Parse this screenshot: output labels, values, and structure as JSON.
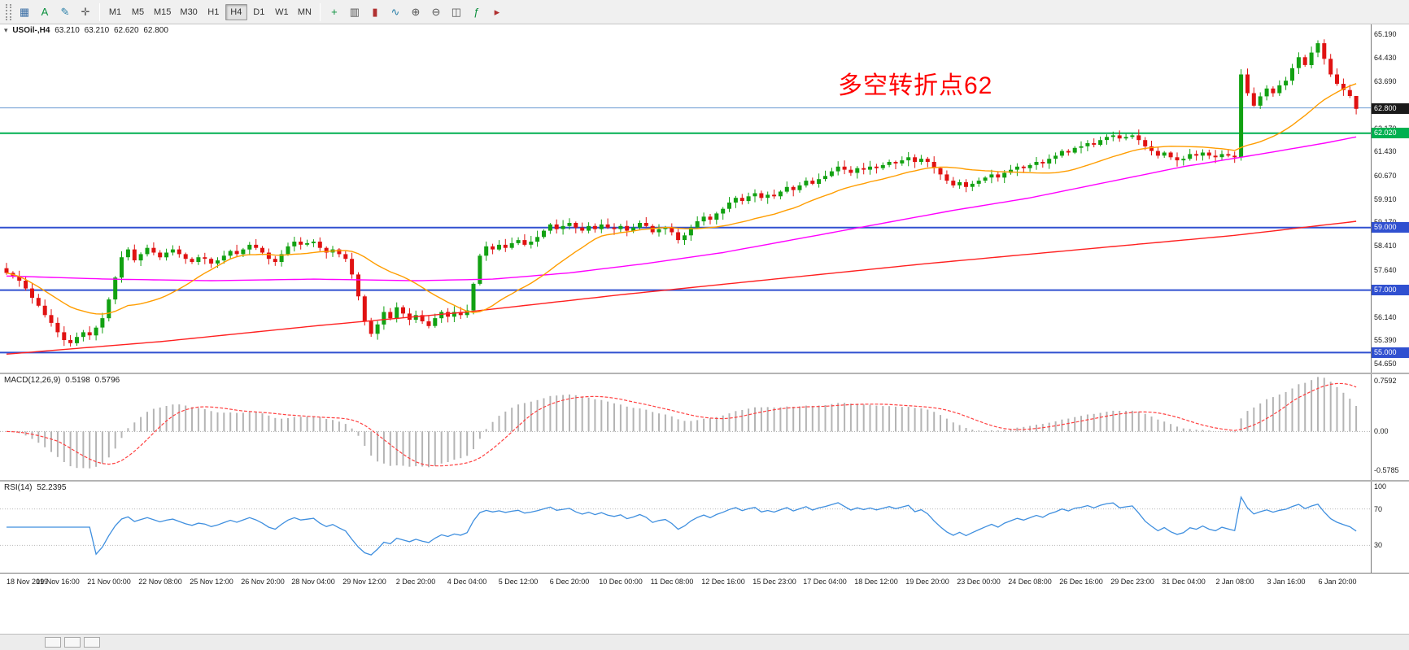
{
  "toolbar": {
    "left_icons": [
      {
        "name": "chart-window-icon",
        "glyph": "▦",
        "color": "#3a6ea5"
      },
      {
        "name": "text-annotation-icon",
        "glyph": "A",
        "color": "#0a8f3c"
      },
      {
        "name": "draw-pen-icon",
        "glyph": "✎",
        "color": "#2a7fa8"
      },
      {
        "name": "crosshair-icon",
        "glyph": "✛",
        "color": "#555555"
      }
    ],
    "timeframes": {
      "items": [
        "M1",
        "M5",
        "M15",
        "M30",
        "H1",
        "H4",
        "D1",
        "W1",
        "MN"
      ],
      "active": "H4"
    },
    "right_icons": [
      {
        "name": "new-order-icon",
        "glyph": "+",
        "color": "#0a8f3c"
      },
      {
        "name": "bar-chart-icon",
        "glyph": "▥",
        "color": "#555555"
      },
      {
        "name": "candlestick-chart-icon",
        "glyph": "▮",
        "color": "#b03030"
      },
      {
        "name": "line-chart-icon",
        "glyph": "∿",
        "color": "#2a7fa8"
      },
      {
        "name": "zoom-in-icon",
        "glyph": "⊕",
        "color": "#555555"
      },
      {
        "name": "zoom-out-icon",
        "glyph": "⊖",
        "color": "#555555"
      },
      {
        "name": "tile-windows-icon",
        "glyph": "◫",
        "color": "#555555"
      },
      {
        "name": "indicators-icon",
        "glyph": "ƒ",
        "color": "#0a8f3c"
      },
      {
        "name": "auto-scroll-icon",
        "glyph": "▸",
        "color": "#b03030"
      }
    ]
  },
  "chart": {
    "symbol_label": "USOil-,H4",
    "ohlc": {
      "open": "63.210",
      "high": "63.210",
      "low": "62.620",
      "close": "62.800"
    },
    "annotation": {
      "text": "多空转折点62",
      "color": "#ff0000"
    },
    "price_axis": {
      "labels": [
        "65.190",
        "64.430",
        "63.690",
        "62.170",
        "61.430",
        "60.670",
        "59.910",
        "59.170",
        "58.410",
        "57.640",
        "56.140",
        "55.390",
        "54.650"
      ],
      "label_values": [
        65.19,
        64.43,
        63.69,
        62.17,
        61.43,
        60.67,
        59.91,
        59.17,
        58.41,
        57.64,
        56.14,
        55.39,
        54.65
      ]
    },
    "current_price_tag": {
      "text": "62.800",
      "value": 62.8,
      "bg": "#1a1a1a"
    }
  },
  "chart_data": {
    "type": "candlestick",
    "symbol": "USOil",
    "timeframe": "H4",
    "colors": {
      "up": "#12a112",
      "down": "#e01212",
      "ma_fast": "#ff9d00",
      "ma_mid": "#ff00ff",
      "ma_slow": "#ff2020",
      "macd_hist": "#b4b4b4",
      "macd_signal": "#ff4040",
      "rsi_line": "#3f8fdf"
    },
    "y_range": {
      "min": 54.36,
      "max": 65.5
    },
    "bars_per_label": 8,
    "x_labels": [
      "18 Nov 2019",
      "19 Nov 16:00",
      "21 Nov 00:00",
      "22 Nov 08:00",
      "25 Nov 12:00",
      "26 Nov 20:00",
      "28 Nov 04:00",
      "29 Nov 12:00",
      "2 Dec 20:00",
      "4 Dec 04:00",
      "5 Dec 12:00",
      "6 Dec 20:00",
      "10 Dec 00:00",
      "11 Dec 08:00",
      "12 Dec 16:00",
      "15 Dec 23:00",
      "17 Dec 04:00",
      "18 Dec 12:00",
      "19 Dec 20:00",
      "23 Dec 00:00",
      "24 Dec 08:00",
      "26 Dec 16:00",
      "29 Dec 23:00",
      "31 Dec 04:00",
      "2 Jan 08:00",
      "3 Jan 16:00",
      "6 Jan 20:00"
    ],
    "closes": [
      57.55,
      57.45,
      57.3,
      57.05,
      56.75,
      56.5,
      56.2,
      55.95,
      55.65,
      55.4,
      55.3,
      55.5,
      55.65,
      55.55,
      55.8,
      56.1,
      56.7,
      57.4,
      58.05,
      58.3,
      57.95,
      58.15,
      58.35,
      58.2,
      58.05,
      58.2,
      58.3,
      58.15,
      58.0,
      57.9,
      58.05,
      58.0,
      57.85,
      57.95,
      58.1,
      58.25,
      58.15,
      58.3,
      58.45,
      58.35,
      58.2,
      58.0,
      57.9,
      58.15,
      58.4,
      58.55,
      58.45,
      58.5,
      58.55,
      58.35,
      58.2,
      58.3,
      58.15,
      58.0,
      57.5,
      56.8,
      56.0,
      55.6,
      55.9,
      56.3,
      56.1,
      56.45,
      56.25,
      56.05,
      56.2,
      56.0,
      55.85,
      56.1,
      56.3,
      56.15,
      56.3,
      56.2,
      56.35,
      57.2,
      58.1,
      58.4,
      58.3,
      58.45,
      58.35,
      58.5,
      58.6,
      58.45,
      58.55,
      58.7,
      58.9,
      59.1,
      58.95,
      59.05,
      59.15,
      59.0,
      58.9,
      59.05,
      58.95,
      59.1,
      59.0,
      58.95,
      59.05,
      58.9,
      59.0,
      59.15,
      59.05,
      58.85,
      58.95,
      59.0,
      58.85,
      58.6,
      58.75,
      59.0,
      59.2,
      59.35,
      59.25,
      59.45,
      59.6,
      59.8,
      59.95,
      59.85,
      60.0,
      60.1,
      59.95,
      60.05,
      60.0,
      60.15,
      60.3,
      60.2,
      60.35,
      60.5,
      60.4,
      60.55,
      60.65,
      60.8,
      60.95,
      60.85,
      60.75,
      60.9,
      60.85,
      60.95,
      60.9,
      61.0,
      61.1,
      61.05,
      61.15,
      61.25,
      61.1,
      61.2,
      61.1,
      60.9,
      60.7,
      60.5,
      60.35,
      60.45,
      60.3,
      60.4,
      60.5,
      60.6,
      60.7,
      60.6,
      60.75,
      60.85,
      60.95,
      60.9,
      61.0,
      61.1,
      61.05,
      61.2,
      61.3,
      61.45,
      61.4,
      61.55,
      61.6,
      61.7,
      61.65,
      61.8,
      61.9,
      61.95,
      61.85,
      61.9,
      61.95,
      61.8,
      61.6,
      61.45,
      61.3,
      61.4,
      61.25,
      61.15,
      61.2,
      61.35,
      61.3,
      61.4,
      61.3,
      61.25,
      61.35,
      61.3,
      61.25,
      63.9,
      63.3,
      62.9,
      63.2,
      63.45,
      63.3,
      63.55,
      63.7,
      64.1,
      64.45,
      64.2,
      64.6,
      64.9,
      64.4,
      63.9,
      63.6,
      63.4,
      63.21,
      62.8
    ],
    "last_ohlc": {
      "open": 63.21,
      "high": 63.21,
      "low": 62.62,
      "close": 62.8
    },
    "ma_fast_period": 20,
    "ma_mid_anchors": [
      [
        0,
        57.45
      ],
      [
        16,
        57.35
      ],
      [
        32,
        57.3
      ],
      [
        48,
        57.35
      ],
      [
        64,
        57.3
      ],
      [
        76,
        57.35
      ],
      [
        88,
        57.55
      ],
      [
        100,
        57.85
      ],
      [
        112,
        58.2
      ],
      [
        124,
        58.65
      ],
      [
        136,
        59.1
      ],
      [
        148,
        59.55
      ],
      [
        160,
        59.95
      ],
      [
        172,
        60.45
      ],
      [
        184,
        60.95
      ],
      [
        196,
        61.35
      ],
      [
        206,
        61.7
      ],
      [
        211,
        61.9
      ]
    ],
    "ma_slow_anchors": [
      [
        0,
        54.95
      ],
      [
        24,
        55.35
      ],
      [
        48,
        55.85
      ],
      [
        72,
        56.3
      ],
      [
        96,
        56.85
      ],
      [
        120,
        57.35
      ],
      [
        144,
        57.85
      ],
      [
        168,
        58.3
      ],
      [
        192,
        58.75
      ],
      [
        211,
        59.2
      ]
    ],
    "hlines": [
      {
        "price": 62.83,
        "color": "#6b9bd2",
        "width": 1,
        "tag": null,
        "tag_bg": null
      },
      {
        "price": 62.02,
        "color": "#00b050",
        "width": 2,
        "tag": "62.020",
        "tag_bg": "#00b050"
      },
      {
        "price": 59.0,
        "color": "#3050d0",
        "width": 2,
        "tag": "59.000",
        "tag_bg": "#3050d0"
      },
      {
        "price": 57.0,
        "color": "#3050d0",
        "width": 2,
        "tag": "57.000",
        "tag_bg": "#3050d0"
      },
      {
        "price": 55.0,
        "color": "#3050d0",
        "width": 2,
        "tag": "55.000",
        "tag_bg": "#3050d0"
      }
    ],
    "indicators": [
      {
        "name": "MACD",
        "label": "MACD(12,26,9)",
        "main_value": "0.5198",
        "signal_value": "0.5796",
        "params": {
          "fast": 12,
          "slow": 26,
          "signal": 9
        },
        "scale": [
          {
            "text": "0.7592",
            "value": 0.7592
          },
          {
            "text": "0.00",
            "value": 0.0
          },
          {
            "text": "-0.5785",
            "value": -0.5785
          }
        ],
        "range": {
          "min": -0.72,
          "max": 0.85
        }
      },
      {
        "name": "RSI",
        "label": "RSI(14)",
        "value": "52.2395",
        "params": {
          "period": 14
        },
        "levels": [
          70,
          30
        ],
        "scale": [
          {
            "text": "100",
            "value": 100
          },
          {
            "text": "70",
            "value": 70
          },
          {
            "text": "30",
            "value": 30
          }
        ],
        "range": {
          "min": 0,
          "max": 100
        }
      }
    ]
  }
}
